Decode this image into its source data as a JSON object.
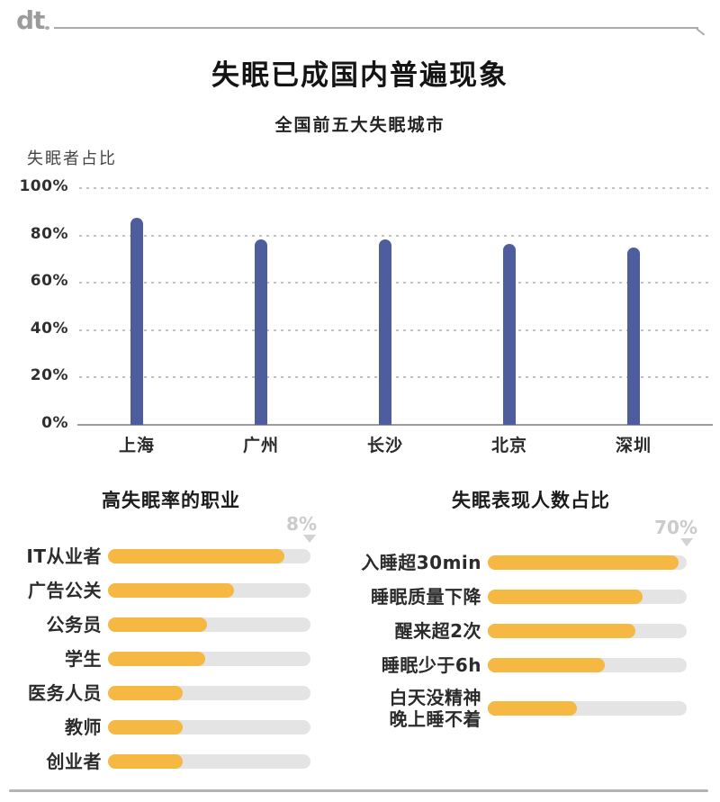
{
  "header": {
    "logo": "dt"
  },
  "title": "失眠已成国内普遍现象",
  "colors": {
    "bar_blue": "#4e5d9d",
    "bar_orange": "#f5b843",
    "track_gray": "#e4e4e4",
    "annotation_gray": "#cccccc",
    "grid_gray": "#c1c1c1",
    "axis_gray": "#9c9c9c"
  },
  "chart_data": [
    {
      "type": "bar",
      "title": "全国前五大失眠城市",
      "ylabel": "失眠者占比",
      "categories": [
        "上海",
        "广州",
        "长沙",
        "北京",
        "深圳"
      ],
      "values": [
        87.5,
        78.5,
        78.5,
        76.5,
        75
      ],
      "unit": "%",
      "ylim": [
        0,
        100
      ],
      "yticks": [
        {
          "label": "100%",
          "value": 100
        },
        {
          "label": "80%",
          "value": 80
        },
        {
          "label": "60%",
          "value": 60
        },
        {
          "label": "40%",
          "value": 40
        },
        {
          "label": "20%",
          "value": 20
        },
        {
          "label": "0%",
          "value": 0
        }
      ],
      "grid": "horizontal-dashed",
      "legend": "none"
    },
    {
      "type": "bar",
      "orientation": "horizontal",
      "title": "高失眠率的职业",
      "categories": [
        "IT从业者",
        "广告公关",
        "公务员",
        "学生",
        "医务人员",
        "教师",
        "创业者"
      ],
      "fill_percent": [
        87,
        62,
        49,
        48,
        37,
        37,
        37
      ],
      "values_estimated": [
        8,
        5.7,
        4.5,
        4.4,
        3.4,
        3.4,
        3.4
      ],
      "max_label": "8%"
    },
    {
      "type": "bar",
      "orientation": "horizontal",
      "title": "失眠表现人数占比",
      "categories": [
        "入睡超30min",
        "睡眠质量下降",
        "醒来超2次",
        "睡眠少于6h",
        "白天没精神\n晚上睡不着"
      ],
      "fill_percent": [
        96,
        78,
        74,
        59,
        45
      ],
      "values_estimated": [
        70,
        57,
        54,
        43,
        33
      ],
      "max_label": "70%"
    }
  ]
}
